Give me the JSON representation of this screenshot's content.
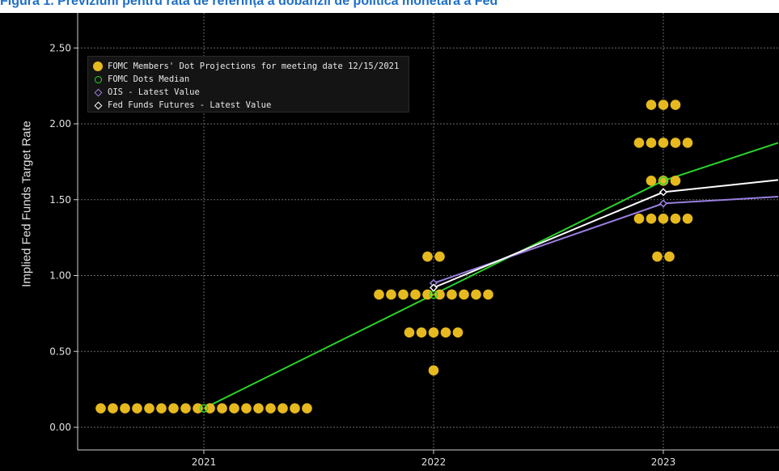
{
  "header": {
    "caption": "Figura 1. Previziuni pentru rata de referință a dobânzii de politică monetară a Fed"
  },
  "chart_data": {
    "type": "scatter",
    "ylabel": "Implied Fed Funds Target Rate",
    "ylim": [
      -0.05,
      2.65
    ],
    "x_ticks": [
      "2021",
      "2022",
      "2023"
    ],
    "y_ticks": [
      "0.00",
      "0.50",
      "1.00",
      "1.50",
      "2.00",
      "2.50"
    ],
    "grid": true,
    "legend_position": "top-left",
    "legend": [
      {
        "label": "FOMC Members' Dot Projections for meeting date 12/15/2021",
        "symbol": "dot",
        "color": "#e6b91e"
      },
      {
        "label": "FOMC Dots Median",
        "symbol": "ring",
        "color": "#2bd22b"
      },
      {
        "label": "OIS - Latest Value",
        "symbol": "diamond",
        "color": "#9a7fe0"
      },
      {
        "label": "Fed Funds Futures - Latest Value",
        "symbol": "diamond",
        "color": "#ffffff"
      }
    ],
    "dot_projections": [
      {
        "year": "2021",
        "rate": 0.125,
        "count": 18
      },
      {
        "year": "2022",
        "rate": 1.125,
        "count": 2
      },
      {
        "year": "2022",
        "rate": 0.875,
        "count": 10
      },
      {
        "year": "2022",
        "rate": 0.625,
        "count": 5
      },
      {
        "year": "2022",
        "rate": 0.375,
        "count": 1
      },
      {
        "year": "2023",
        "rate": 2.125,
        "count": 3
      },
      {
        "year": "2023",
        "rate": 1.875,
        "count": 5
      },
      {
        "year": "2023",
        "rate": 1.625,
        "count": 3
      },
      {
        "year": "2023",
        "rate": 1.375,
        "count": 5
      },
      {
        "year": "2023",
        "rate": 1.125,
        "count": 2
      }
    ],
    "series": [
      {
        "name": "FOMC Dots Median",
        "color": "#2bd22b",
        "points": [
          [
            2021,
            0.125
          ],
          [
            2022,
            0.875
          ],
          [
            2023,
            1.625
          ],
          [
            2023.5,
            1.875
          ]
        ]
      },
      {
        "name": "OIS - Latest Value",
        "color": "#9a7fe0",
        "points": [
          [
            2022,
            0.95
          ],
          [
            2023,
            1.475
          ],
          [
            2023.5,
            1.52
          ]
        ]
      },
      {
        "name": "Fed Funds Futures - Latest Value",
        "color": "#ffffff",
        "points": [
          [
            2022,
            0.92
          ],
          [
            2023,
            1.55
          ],
          [
            2023.5,
            1.63
          ]
        ]
      }
    ]
  }
}
